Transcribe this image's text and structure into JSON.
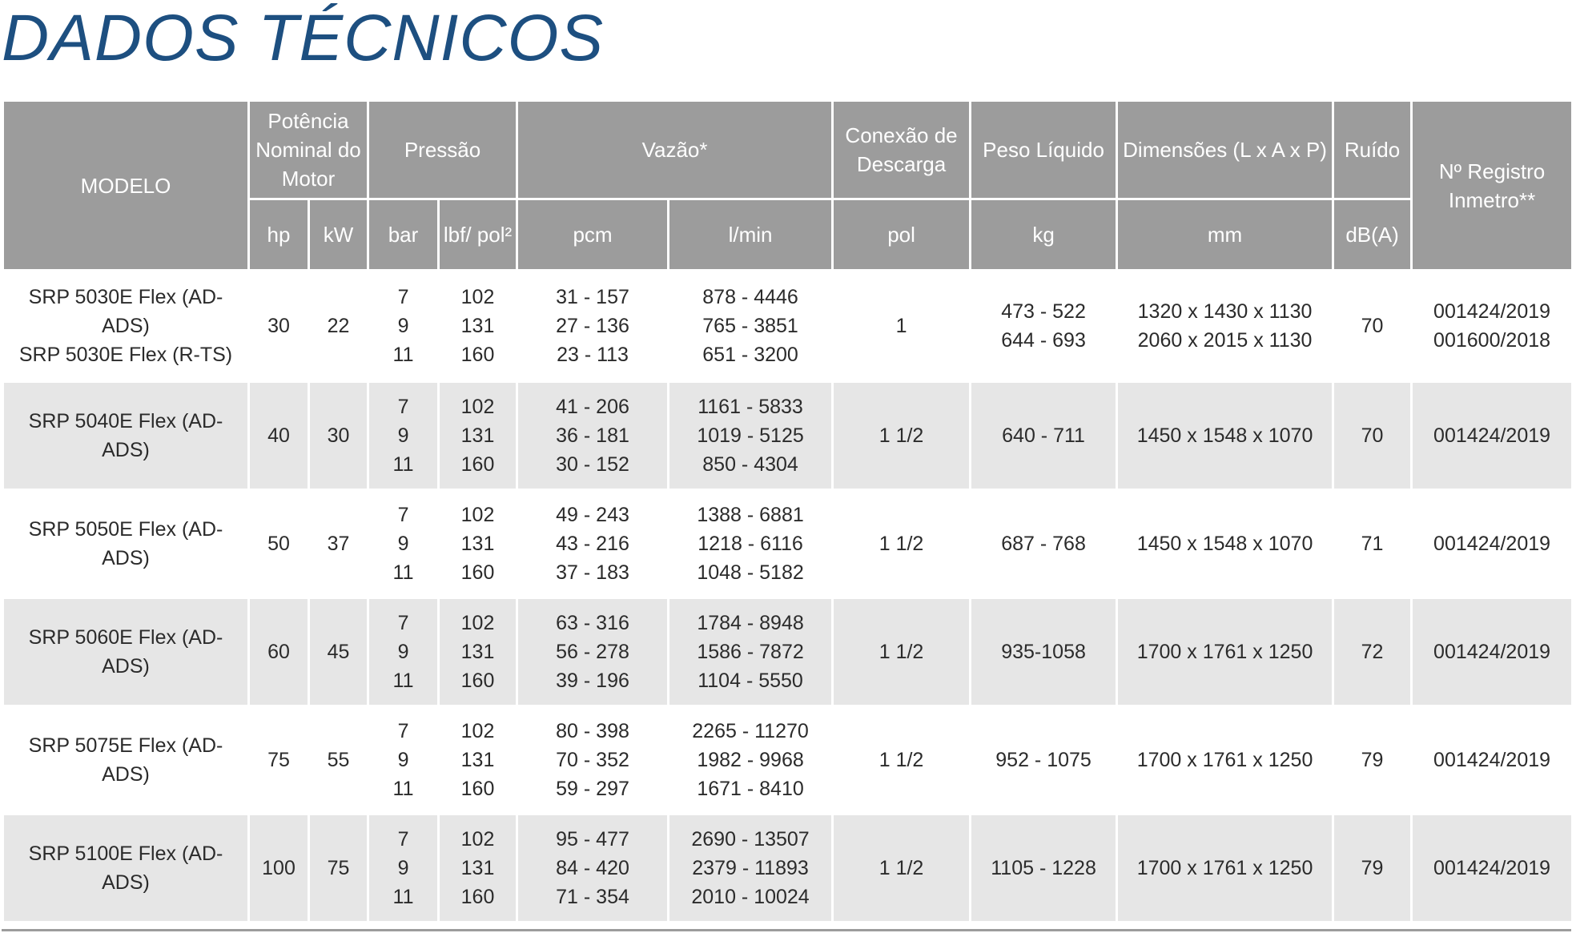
{
  "title": "DADOS TÉCNICOS",
  "header": {
    "modelo": "MODELO",
    "potencia": "Potência Nominal do Motor",
    "pressao": "Pressão",
    "vazao": "Vazão*",
    "conexao": "Conexão de Descarga",
    "peso": "Peso Líquido",
    "dimensoes": "Dimensões (L x A x P)",
    "ruido": "Ruído",
    "registro": "Nº Registro Inmetro**",
    "units": {
      "hp": "hp",
      "kw": "kW",
      "bar": "bar",
      "lbf": "lbf/ pol²",
      "pcm": "pcm",
      "lmin": "l/min",
      "pol": "pol",
      "kg": "kg",
      "mm": "mm",
      "db": "dB(A)"
    }
  },
  "rows": [
    {
      "model": [
        "SRP 5030E Flex (AD-ADS)",
        "SRP 5030E Flex (R-TS)"
      ],
      "hp": "30",
      "kw": "22",
      "bar": [
        "7",
        "9",
        "11"
      ],
      "lbf": [
        "102",
        "131",
        "160"
      ],
      "pcm": [
        "31 - 157",
        "27 - 136",
        "23 - 113"
      ],
      "lmin": [
        "878 - 4446",
        "765 - 3851",
        "651 - 3200"
      ],
      "pol": "1",
      "kg": [
        "473 - 522",
        "644 - 693"
      ],
      "mm": [
        "1320 x 1430 x 1130",
        "2060 x 2015 x 1130"
      ],
      "db": "70",
      "reg": [
        "001424/2019",
        "001600/2018"
      ]
    },
    {
      "model": [
        "SRP 5040E Flex (AD-ADS)"
      ],
      "hp": "40",
      "kw": "30",
      "bar": [
        "7",
        "9",
        "11"
      ],
      "lbf": [
        "102",
        "131",
        "160"
      ],
      "pcm": [
        "41 - 206",
        "36 - 181",
        "30 - 152"
      ],
      "lmin": [
        "1161 - 5833",
        "1019 - 5125",
        "850 - 4304"
      ],
      "pol": "1 1/2",
      "kg": [
        "640 - 711"
      ],
      "mm": [
        "1450 x 1548 x 1070"
      ],
      "db": "70",
      "reg": [
        "001424/2019"
      ]
    },
    {
      "model": [
        "SRP 5050E Flex (AD-ADS)"
      ],
      "hp": "50",
      "kw": "37",
      "bar": [
        "7",
        "9",
        "11"
      ],
      "lbf": [
        "102",
        "131",
        "160"
      ],
      "pcm": [
        "49 - 243",
        "43 - 216",
        "37 - 183"
      ],
      "lmin": [
        "1388 - 6881",
        "1218 - 6116",
        "1048 - 5182"
      ],
      "pol": "1 1/2",
      "kg": [
        "687 - 768"
      ],
      "mm": [
        "1450 x 1548 x 1070"
      ],
      "db": "71",
      "reg": [
        "001424/2019"
      ]
    },
    {
      "model": [
        "SRP 5060E Flex (AD-ADS)"
      ],
      "hp": "60",
      "kw": "45",
      "bar": [
        "7",
        "9",
        "11"
      ],
      "lbf": [
        "102",
        "131",
        "160"
      ],
      "pcm": [
        "63 - 316",
        "56 - 278",
        "39 - 196"
      ],
      "lmin": [
        "1784 - 8948",
        "1586 - 7872",
        "1104 - 5550"
      ],
      "pol": "1 1/2",
      "kg": [
        "935-1058"
      ],
      "mm": [
        "1700 x 1761 x 1250"
      ],
      "db": "72",
      "reg": [
        "001424/2019"
      ]
    },
    {
      "model": [
        "SRP 5075E Flex (AD-ADS)"
      ],
      "hp": "75",
      "kw": "55",
      "bar": [
        "7",
        "9",
        "11"
      ],
      "lbf": [
        "102",
        "131",
        "160"
      ],
      "pcm": [
        "80 - 398",
        "70 - 352",
        "59 - 297"
      ],
      "lmin": [
        "2265 - 11270",
        "1982 - 9968",
        "1671 - 8410"
      ],
      "pol": "1 1/2",
      "kg": [
        "952 - 1075"
      ],
      "mm": [
        "1700 x 1761 x 1250"
      ],
      "db": "79",
      "reg": [
        "001424/2019"
      ]
    },
    {
      "model": [
        "SRP 5100E Flex (AD-ADS)"
      ],
      "hp": "100",
      "kw": "75",
      "bar": [
        "7",
        "9",
        "11"
      ],
      "lbf": [
        "102",
        "131",
        "160"
      ],
      "pcm": [
        "95 - 477",
        "84 - 420",
        "71 - 354"
      ],
      "lmin": [
        "2690 - 13507",
        "2379 - 11893",
        "2010 - 10024"
      ],
      "pol": "1 1/2",
      "kg": [
        "1105 - 1228"
      ],
      "mm": [
        "1700 x 1761 x 1250"
      ],
      "db": "79",
      "reg": [
        "001424/2019"
      ]
    }
  ]
}
